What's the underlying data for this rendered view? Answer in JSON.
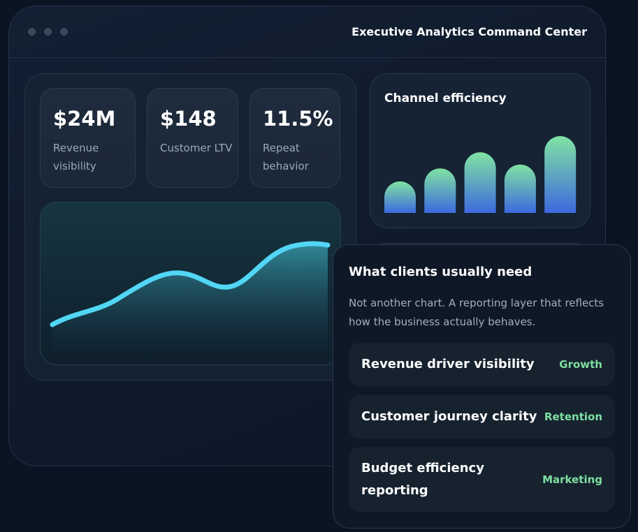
{
  "window": {
    "title": "Executive Analytics Command Center"
  },
  "kpis": [
    {
      "value": "$24M",
      "label": "Revenue visibility"
    },
    {
      "value": "$148",
      "label": "Customer LTV"
    },
    {
      "value": "11.5%",
      "label": "Repeat behavior"
    }
  ],
  "channel_chart": {
    "title": "Channel efficiency",
    "values": [
      41,
      58,
      79,
      63,
      100
    ]
  },
  "popup": {
    "title": "What clients usually need",
    "description": "Not another chart. A reporting layer that reflects how the business actually behaves.",
    "rows": [
      {
        "label": "Revenue driver visibility",
        "tag": "Growth"
      },
      {
        "label": "Customer journey clarity",
        "tag": "Retention"
      },
      {
        "label": "Budget efficiency reporting",
        "tag": "Marketing"
      }
    ]
  }
}
